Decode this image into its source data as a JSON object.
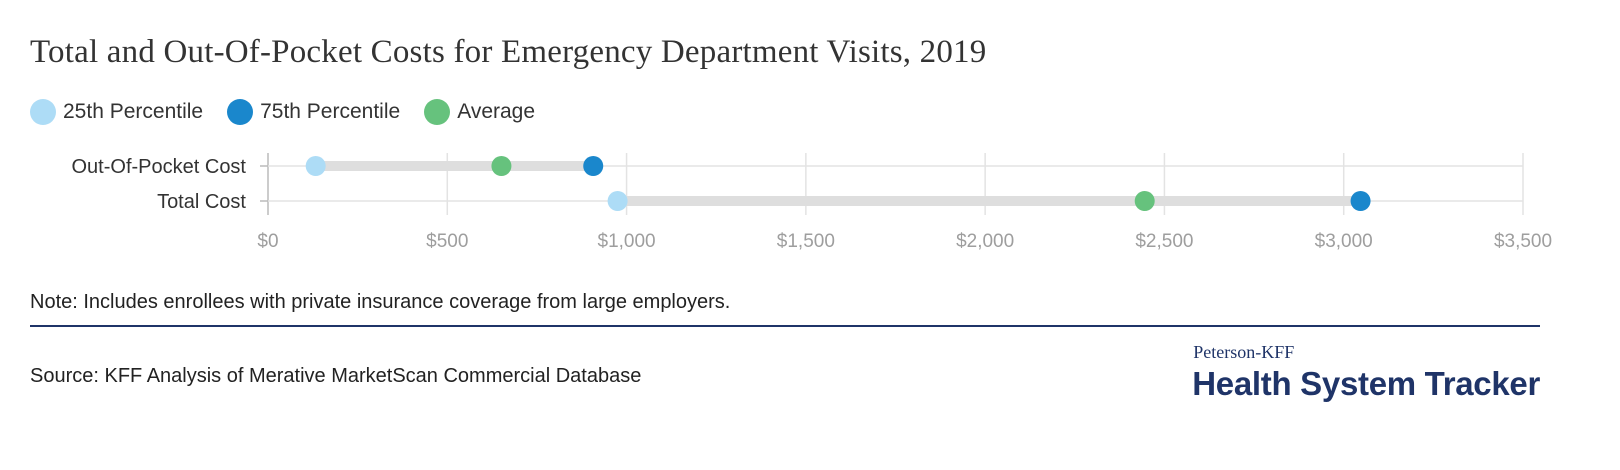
{
  "header": {
    "title": "Total and Out-Of-Pocket Costs for Emergency Department Visits, 2019"
  },
  "legend": [
    {
      "label": "25th Percentile",
      "color": "#addcf6"
    },
    {
      "label": "75th Percentile",
      "color": "#1a87cc"
    },
    {
      "label": "Average",
      "color": "#66c27d"
    }
  ],
  "chart_data": {
    "type": "dot",
    "categories": [
      "Out-Of-Pocket Cost",
      "Total Cost"
    ],
    "series": [
      {
        "name": "25th Percentile",
        "color": "#addcf6",
        "values": [
          133,
          975
        ]
      },
      {
        "name": "75th Percentile",
        "color": "#1a87cc",
        "values": [
          907,
          3047
        ]
      },
      {
        "name": "Average",
        "color": "#66c27d",
        "values": [
          651,
          2445
        ]
      }
    ],
    "xlim": [
      0,
      3500
    ],
    "xticks": [
      0,
      500,
      1000,
      1500,
      2000,
      2500,
      3000,
      3500
    ],
    "xtick_labels": [
      "$0",
      "$500",
      "$1,000",
      "$1,500",
      "$2,000",
      "$2,500",
      "$3,000",
      "$3,500"
    ],
    "grid": true,
    "legend_position": "top-left"
  },
  "footer": {
    "note": "Note: Includes enrollees with private insurance coverage from large employers.",
    "source": "Source: KFF Analysis of Merative MarketScan Commercial Database",
    "logo_line1": "Peterson-KFF",
    "logo_line2": "Health System Tracker"
  }
}
